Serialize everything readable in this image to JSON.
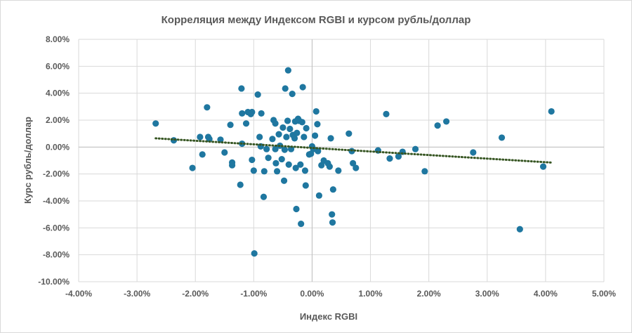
{
  "chart_data": {
    "type": "scatter",
    "title": "Корреляция между Индексом RGBI и курсом рубль/доллар",
    "xlabel": "Индекс RGBI",
    "ylabel": "Курс рубль/доллар",
    "xlim": [
      -4,
      5
    ],
    "ylim": [
      -10,
      8
    ],
    "x_ticks": [
      "-4.00%",
      "-3.00%",
      "-2.00%",
      "-1.00%",
      "0.00%",
      "1.00%",
      "2.00%",
      "3.00%",
      "4.00%",
      "5.00%"
    ],
    "y_ticks": [
      "8.00%",
      "6.00%",
      "4.00%",
      "2.00%",
      "0.00%",
      "-2.00%",
      "-4.00%",
      "-6.00%",
      "-8.00%",
      "-10.00%"
    ],
    "grid": true,
    "marker_color": "#1f77a0",
    "trendline": {
      "type": "linear",
      "color": "#375623",
      "style": "dotted",
      "x_range": [
        -2.68,
        4.1
      ],
      "y_range": [
        0.65,
        -1.15
      ]
    },
    "points": [
      [
        -2.68,
        1.75
      ],
      [
        -2.37,
        0.5
      ],
      [
        -2.05,
        -1.55
      ],
      [
        -1.92,
        0.75
      ],
      [
        -1.88,
        -0.55
      ],
      [
        -1.8,
        2.95
      ],
      [
        -1.78,
        0.75
      ],
      [
        -1.76,
        0.6
      ],
      [
        -1.57,
        0.55
      ],
      [
        -1.5,
        -0.4
      ],
      [
        -1.4,
        1.65
      ],
      [
        -1.37,
        -1.15
      ],
      [
        -1.37,
        -1.35
      ],
      [
        -1.23,
        -2.8
      ],
      [
        -1.21,
        4.35
      ],
      [
        -1.2,
        2.5
      ],
      [
        -1.2,
        0.25
      ],
      [
        -1.13,
        1.75
      ],
      [
        -1.1,
        2.6
      ],
      [
        -1.05,
        2.45
      ],
      [
        -1.03,
        2.6
      ],
      [
        -1.03,
        -0.95
      ],
      [
        -1.0,
        -1.75
      ],
      [
        -0.99,
        -7.9
      ],
      [
        -0.93,
        3.9
      ],
      [
        -0.9,
        0.75
      ],
      [
        -0.88,
        0.05
      ],
      [
        -0.87,
        2.5
      ],
      [
        -0.83,
        -3.7
      ],
      [
        -0.82,
        -1.8
      ],
      [
        -0.78,
        -0.15
      ],
      [
        -0.75,
        -0.8
      ],
      [
        -0.68,
        0.6
      ],
      [
        -0.66,
        2.0
      ],
      [
        -0.63,
        1.75
      ],
      [
        -0.63,
        -0.15
      ],
      [
        -0.62,
        -1.2
      ],
      [
        -0.6,
        -1.8
      ],
      [
        -0.57,
        0.95
      ],
      [
        -0.55,
        0.1
      ],
      [
        -0.52,
        -0.9
      ],
      [
        -0.5,
        1.45
      ],
      [
        -0.48,
        -2.5
      ],
      [
        -0.47,
        -0.2
      ],
      [
        -0.46,
        4.35
      ],
      [
        -0.44,
        0.75
      ],
      [
        -0.42,
        1.95
      ],
      [
        -0.41,
        5.7
      ],
      [
        -0.4,
        -1.3
      ],
      [
        -0.38,
        1.35
      ],
      [
        -0.36,
        -0.15
      ],
      [
        -0.34,
        3.95
      ],
      [
        -0.33,
        0.9
      ],
      [
        -0.3,
        0.65
      ],
      [
        -0.29,
        1.9
      ],
      [
        -0.28,
        -1.55
      ],
      [
        -0.27,
        -4.6
      ],
      [
        -0.26,
        1.05
      ],
      [
        -0.24,
        2.1
      ],
      [
        -0.22,
        1.95
      ],
      [
        -0.2,
        -1.3
      ],
      [
        -0.19,
        -5.7
      ],
      [
        -0.17,
        1.85
      ],
      [
        -0.16,
        4.45
      ],
      [
        -0.14,
        0.75
      ],
      [
        -0.12,
        -1.75
      ],
      [
        -0.11,
        -2.85
      ],
      [
        -0.1,
        1.4
      ],
      [
        -0.05,
        -0.55
      ],
      [
        -0.02,
        -0.5
      ],
      [
        0.0,
        0.05
      ],
      [
        0.02,
        -0.15
      ],
      [
        0.05,
        0.85
      ],
      [
        0.07,
        2.65
      ],
      [
        0.09,
        1.7
      ],
      [
        0.1,
        -0.3
      ],
      [
        0.12,
        -3.6
      ],
      [
        0.16,
        -1.35
      ],
      [
        0.2,
        -1.0
      ],
      [
        0.27,
        -1.2
      ],
      [
        0.3,
        -1.45
      ],
      [
        0.32,
        0.65
      ],
      [
        0.34,
        -5.0
      ],
      [
        0.35,
        -5.6
      ],
      [
        0.36,
        -3.15
      ],
      [
        0.45,
        -1.75
      ],
      [
        0.63,
        1.0
      ],
      [
        0.68,
        -0.3
      ],
      [
        0.7,
        -1.2
      ],
      [
        0.75,
        -1.55
      ],
      [
        1.13,
        -0.25
      ],
      [
        1.27,
        2.45
      ],
      [
        1.33,
        -0.85
      ],
      [
        1.48,
        -0.7
      ],
      [
        1.55,
        -0.35
      ],
      [
        1.77,
        -0.15
      ],
      [
        1.93,
        -1.8
      ],
      [
        2.15,
        1.6
      ],
      [
        2.3,
        1.9
      ],
      [
        2.76,
        -0.4
      ],
      [
        3.25,
        0.7
      ],
      [
        3.56,
        -6.1
      ],
      [
        3.96,
        -1.45
      ],
      [
        4.1,
        2.65
      ]
    ]
  }
}
